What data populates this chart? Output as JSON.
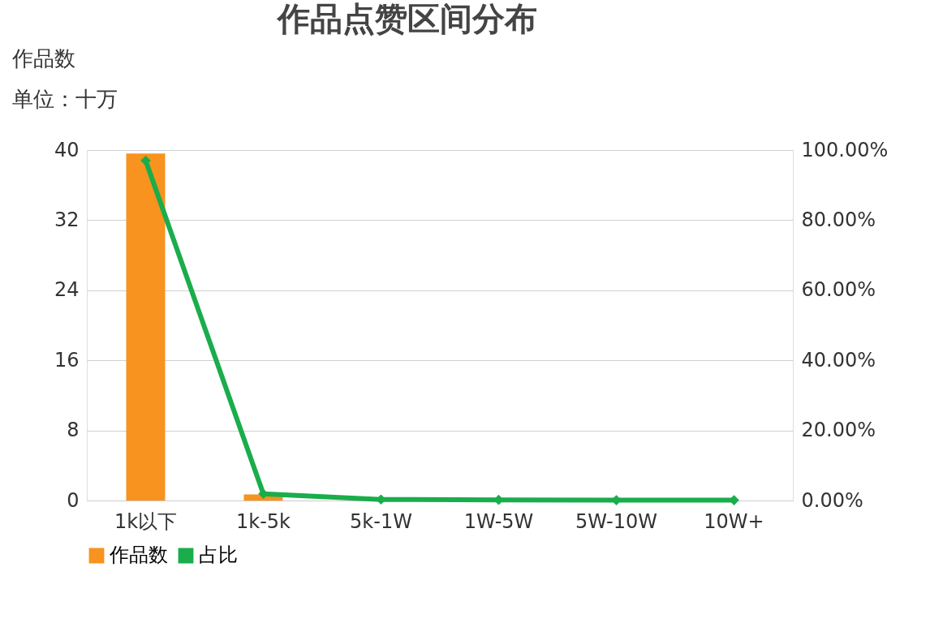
{
  "chart_data": {
    "type": "bar",
    "title": "作品点赞区间分布",
    "ylabel": "作品数",
    "annotations": [
      "单位：十万"
    ],
    "categories": [
      "1k以下",
      "1k-5k",
      "5k-1W",
      "1W-5W",
      "5W-10W",
      "10W+"
    ],
    "series": [
      {
        "name": "作品数",
        "color": "#f7931e",
        "values": [
          39.6,
          0.7,
          0,
          0,
          0,
          0
        ]
      },
      {
        "name": "占比",
        "type": "line",
        "axis": "y2",
        "color": "#1aad4b",
        "marker": "diamond",
        "values": [
          97,
          1.9,
          0.3,
          0.2,
          0.1,
          0.1
        ]
      }
    ],
    "ylim": [
      0,
      40
    ],
    "yticks": [
      0,
      8,
      16,
      24,
      32,
      40
    ],
    "y2lim": [
      0,
      100
    ],
    "y2ticks": [
      {
        "value": 0,
        "label": "0.00%"
      },
      {
        "value": 20,
        "label": "20.00%"
      },
      {
        "value": 40,
        "label": "40.00%"
      },
      {
        "value": 60,
        "label": "60.00%"
      },
      {
        "value": 80,
        "label": "80.00%"
      },
      {
        "value": 100,
        "label": "100.00%"
      }
    ],
    "grid": "y",
    "legend": "bottom"
  }
}
